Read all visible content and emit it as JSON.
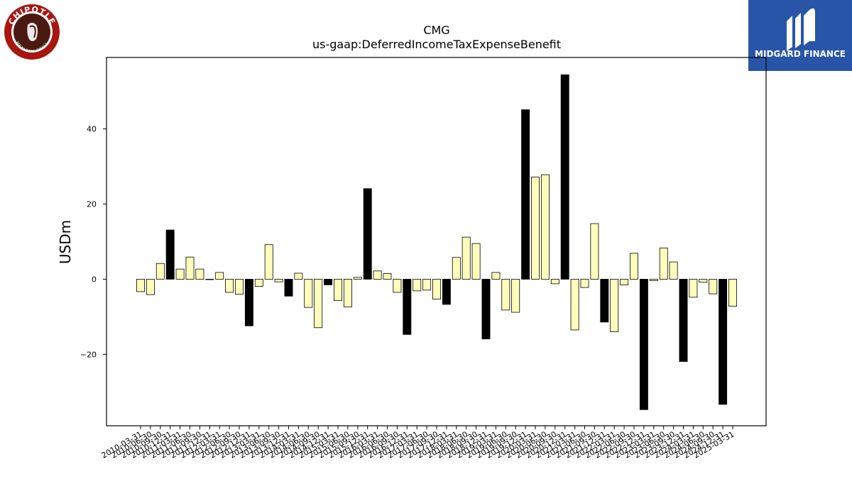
{
  "brand": {
    "left_logo_text": "CHIPOTLE MEXICAN GRILL",
    "right_logo_text": "MIDGARD FINANCE",
    "left_logo_color": "#a81612",
    "right_logo_color": "#2855a8"
  },
  "chart_data": {
    "type": "bar",
    "title": "CMG",
    "subtitle": "us-gaap:DeferredIncomeTaxExpenseBenefit",
    "ylabel": "USDm",
    "xlabel": "",
    "ylim": [
      -39,
      59
    ],
    "yticks": [
      -20,
      0,
      20,
      40
    ],
    "grid": false,
    "colors": {
      "q4": "#000000",
      "other": "#ffffbb",
      "edge": "#000000"
    },
    "categories": [
      "2010-03-31",
      "2010-06-30",
      "2010-09-30",
      "2010-12-31",
      "2011-03-31",
      "2011-06-30",
      "2011-09-30",
      "2011-12-31",
      "2012-03-31",
      "2012-06-30",
      "2012-09-30",
      "2012-12-31",
      "2013-03-31",
      "2013-06-30",
      "2013-09-30",
      "2013-12-31",
      "2014-03-31",
      "2014-06-30",
      "2014-09-30",
      "2014-12-31",
      "2015-03-31",
      "2015-06-30",
      "2015-09-30",
      "2015-12-31",
      "2016-03-31",
      "2016-06-30",
      "2016-09-30",
      "2016-12-31",
      "2017-03-31",
      "2017-06-30",
      "2017-09-30",
      "2017-12-31",
      "2018-03-31",
      "2018-06-30",
      "2018-09-30",
      "2018-12-31",
      "2019-03-31",
      "2019-06-30",
      "2019-09-30",
      "2019-12-31",
      "2020-03-31",
      "2020-06-30",
      "2020-09-30",
      "2020-12-31",
      "2021-03-31",
      "2021-06-30",
      "2021-09-30",
      "2021-12-31",
      "2022-03-31",
      "2022-06-30",
      "2022-09-30",
      "2022-12-31",
      "2023-03-31",
      "2023-06-30",
      "2023-09-30",
      "2023-12-31",
      "2024-03-31",
      "2024-06-30",
      "2024-09-30",
      "2024-12-31",
      "2025-03-31"
    ],
    "x_tick_labels": [
      "2010-03-31",
      "2010-06-30",
      "2010-09-30",
      "2010-12-31",
      "2011-03-31",
      "2011-06-30",
      "2011-09-30",
      "2011-12-31",
      "2012-03-31",
      "2012-06-30",
      "2012-09-30",
      "2012-12-31",
      "2013-03-31",
      "2013-06-30",
      "2013-09-30",
      "2013-12-31",
      "2014-03-31",
      "2014-06-30",
      "2014-09-30",
      "2014-12-31",
      "2015-03-31",
      "2015-06-30",
      "2015-09-30",
      "2015-12-31",
      "2016-03-31",
      "2016-06-30",
      "2016-09-30",
      "2016-12-31",
      "2017-03-31",
      "2017-06-30",
      "2017-09-30",
      "2017-12-31",
      "2018-03-31",
      "2018-06-30",
      "2018-09-30",
      "2018-12-31",
      "2019-03-31",
      "2019-06-30",
      "2019-09-30",
      "2019-12-31",
      "2020-03-31",
      "2020-06-30",
      "2020-09-30",
      "2020-12-31",
      "2021-03-31",
      "2021-06-30",
      "2021-09-30",
      "2021-12-31",
      "2022-03-31",
      "2022-06-30",
      "2022-09-30",
      "2022-12-31",
      "2023-03-31",
      "2023-06-30",
      "2023-09-30",
      "2023-12-31",
      "2024-03-31",
      "2024-06-30",
      "2024-09-30",
      "2024-12-31",
      "2025-03-31"
    ],
    "values": [
      -3.3,
      -4.1,
      4.2,
      13.1,
      2.7,
      5.9,
      2.7,
      0.0,
      1.8,
      -3.5,
      -4.0,
      -12.4,
      -1.9,
      9.2,
      -0.7,
      -4.5,
      1.6,
      -7.5,
      -12.9,
      -1.5,
      -5.7,
      -7.4,
      0.5,
      24.1,
      2.2,
      1.5,
      -3.5,
      -14.7,
      -3.1,
      -2.9,
      -5.3,
      -6.7,
      5.8,
      11.2,
      9.5,
      -15.9,
      1.8,
      -8.2,
      -8.8,
      45.1,
      27.2,
      27.8,
      -1.2,
      54.4,
      -13.5,
      -2.2,
      14.8,
      -11.4,
      -14.0,
      -1.5,
      6.9,
      -34.7,
      -0.4,
      8.3,
      4.6,
      -21.9,
      -4.8,
      -0.8,
      -3.9,
      -33.3,
      -7.2
    ]
  }
}
